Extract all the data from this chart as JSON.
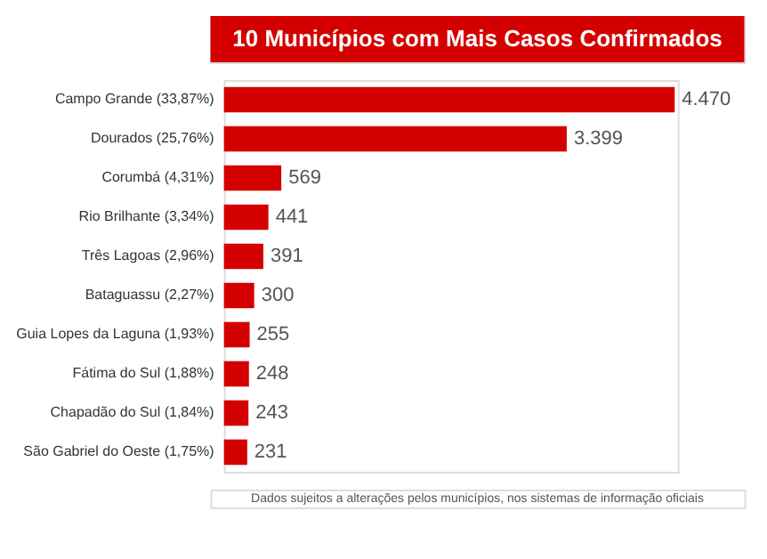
{
  "chart_data": {
    "type": "bar",
    "orientation": "horizontal",
    "title": "10 Municípios com Mais Casos Confirmados",
    "categories": [
      "Campo Grande (33,87%)",
      "Dourados (25,76%)",
      "Corumbá (4,31%)",
      "Rio Brilhante (3,34%)",
      "Três Lagoas (2,96%)",
      "Bataguassu (2,27%)",
      "Guia Lopes da Laguna (1,93%)",
      "Fátima do Sul (1,88%)",
      "Chapadão do Sul (1,84%)",
      "São Gabriel do Oeste (1,75%)"
    ],
    "values": [
      4470,
      3399,
      569,
      441,
      391,
      300,
      255,
      248,
      243,
      231
    ],
    "value_labels": [
      "4.470",
      "3.399",
      "569",
      "441",
      "391",
      "300",
      "255",
      "248",
      "243",
      "231"
    ],
    "color": "#d40000",
    "annotations": [
      "Dados sujeitos a alterações pelos municípios, nos sistemas de informação oficiais"
    ],
    "grid": false
  }
}
